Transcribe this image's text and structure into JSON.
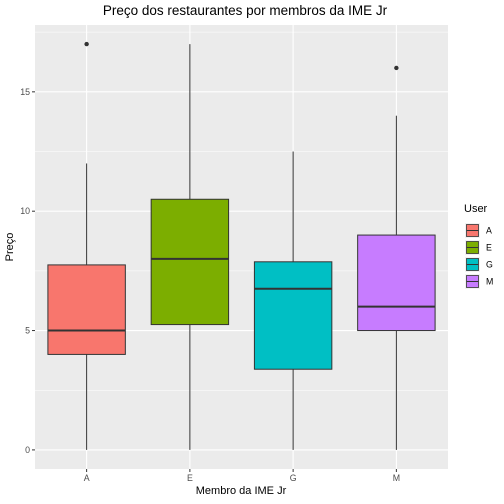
{
  "chart_data": {
    "type": "boxplot",
    "title": "Preço dos restaurantes por membros da IME Jr",
    "xlabel": "Membro da IME Jr",
    "ylabel": "Preço",
    "ylim": [
      -0.8,
      17.8
    ],
    "y_ticks": [
      0,
      5,
      10,
      15
    ],
    "categories": [
      "A",
      "E",
      "G",
      "M"
    ],
    "boxes": [
      {
        "category": "A",
        "whisker_low": 0,
        "q1": 4.0,
        "median": 5.0,
        "q3": 7.75,
        "whisker_high": 12.0,
        "outliers": [
          17
        ],
        "color": "#F8766D"
      },
      {
        "category": "E",
        "whisker_low": 0,
        "q1": 5.25,
        "median": 8.0,
        "q3": 10.5,
        "whisker_high": 17.0,
        "outliers": [],
        "color": "#7CAE00"
      },
      {
        "category": "G",
        "whisker_low": 0,
        "q1": 3.38,
        "median": 6.75,
        "q3": 7.88,
        "whisker_high": 12.5,
        "outliers": [],
        "color": "#00BFC4"
      },
      {
        "category": "M",
        "whisker_low": 0,
        "q1": 5.0,
        "median": 6.0,
        "q3": 9.0,
        "whisker_high": 14.0,
        "outliers": [
          16
        ],
        "color": "#C77CFF"
      }
    ],
    "legend": {
      "title": "User",
      "position": "right",
      "entries": [
        {
          "label": "A",
          "color": "#F8766D"
        },
        {
          "label": "E",
          "color": "#7CAE00"
        },
        {
          "label": "G",
          "color": "#00BFC4"
        },
        {
          "label": "M",
          "color": "#C77CFF"
        }
      ]
    },
    "grid": true,
    "panel_background": "#EBEBEB",
    "grid_color": "#FFFFFF"
  }
}
